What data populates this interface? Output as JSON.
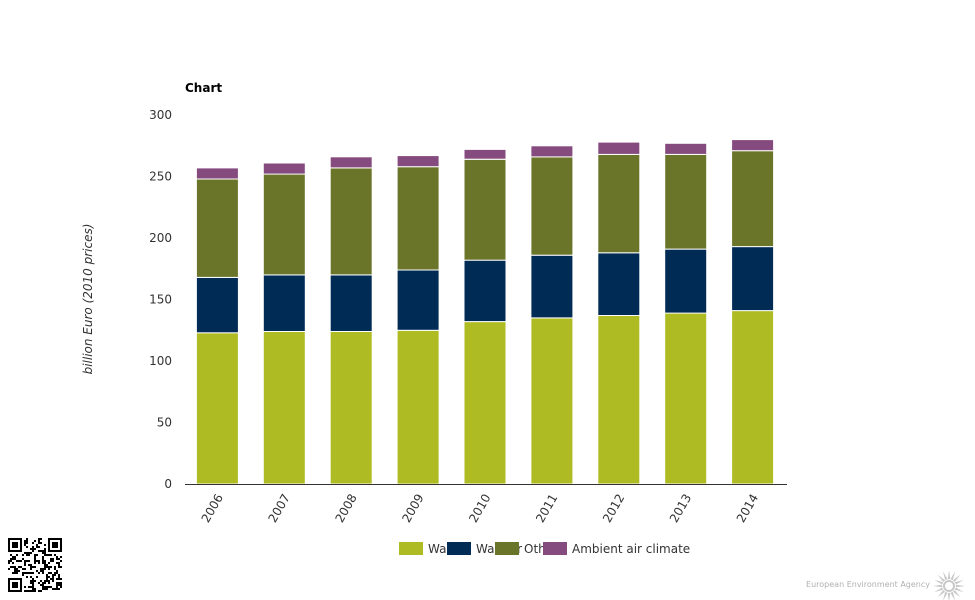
{
  "brand": {
    "name": "European Environment Agency"
  },
  "chart_data": {
    "type": "bar",
    "stacked": true,
    "title": "Chart",
    "xlabel": "",
    "ylabel": "billion Euro (2010 prices)",
    "ylim": [
      0,
      300
    ],
    "yticks": [
      0,
      50,
      100,
      150,
      200,
      250,
      300
    ],
    "grid": false,
    "legend_position": "bottom",
    "categories": [
      "2006",
      "2007",
      "2008",
      "2009",
      "2010",
      "2011",
      "2012",
      "2013",
      "2014"
    ],
    "series": [
      {
        "name": "Wa",
        "color": "#afbb22",
        "values": [
          123,
          124,
          124,
          125,
          132,
          135,
          137,
          139,
          141
        ]
      },
      {
        "name": "Wa",
        "color": "#002b55",
        "values": [
          45,
          46,
          46,
          49,
          50,
          51,
          51,
          52,
          52
        ]
      },
      {
        "name": "Oth",
        "color": "#6b752a",
        "values": [
          80,
          82,
          87,
          84,
          82,
          80,
          80,
          77,
          78
        ]
      },
      {
        "name": "Ambient air climate",
        "color": "#854a7e",
        "values": [
          9,
          9,
          9,
          9,
          8,
          9,
          10,
          9,
          9
        ]
      }
    ]
  },
  "legend_overlap_text": "ter"
}
